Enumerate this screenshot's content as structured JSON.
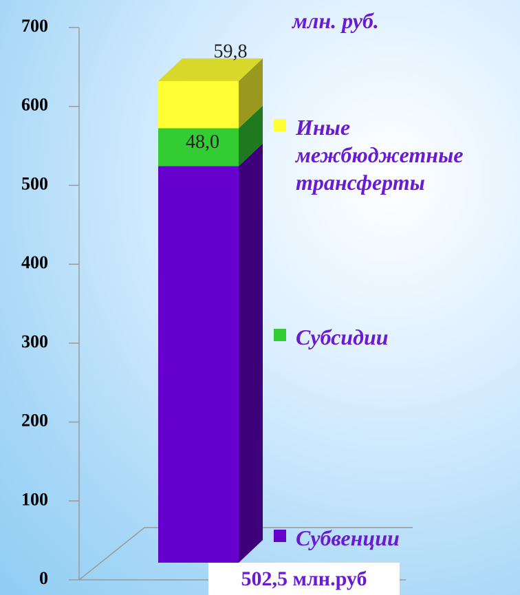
{
  "chart_data": {
    "type": "stacked-bar-3d",
    "y_axis_label": "млн. руб.",
    "ylim": [
      0,
      700
    ],
    "yticks": [
      0,
      100,
      200,
      300,
      400,
      500,
      600,
      700
    ],
    "series": [
      {
        "name": "Субвенции",
        "color": "#6600cc",
        "values": [
          502.5
        ],
        "value_labels": [
          "502,5 млн.руб"
        ]
      },
      {
        "name": "Субсидии",
        "color": "#33cc33",
        "values": [
          48.0
        ],
        "value_labels": [
          "48,0"
        ]
      },
      {
        "name": "Иные межбюджетные трансферты",
        "color": "#ffff33",
        "values": [
          59.8
        ],
        "value_labels": [
          "59,8"
        ]
      }
    ]
  }
}
